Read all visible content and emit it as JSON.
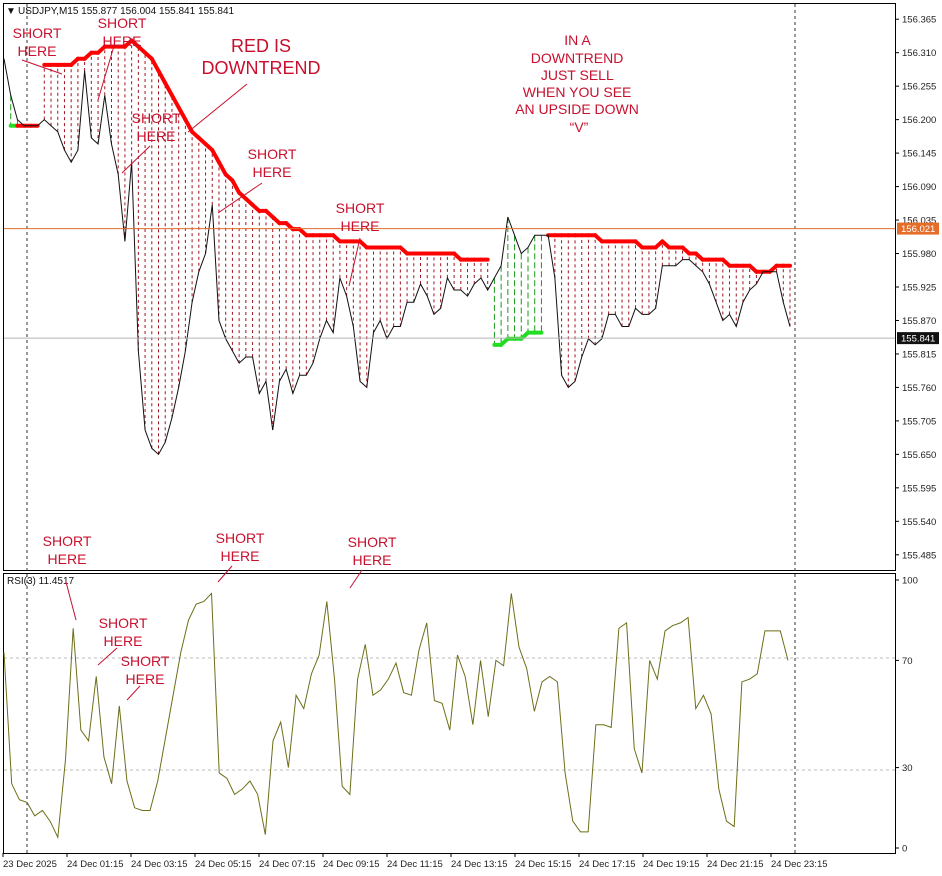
{
  "header": {
    "symbol_info": "USDJPY,M15  155.877 156.004 155.841 155.841",
    "menu_glyph": "▼"
  },
  "rsi_header": "RSI(3) 11.4517",
  "colors": {
    "price": "#111111",
    "down_ma": "#ff0000",
    "up_ma": "#22dd22",
    "fill_down": "#a0141e",
    "fill_up": "#1a9a1a",
    "bid_line": "#e46d2a",
    "ask_line": "#b0b0b0",
    "rsi": "#6e6e1a"
  },
  "price_tags": {
    "level_a": "156.021",
    "level_b": "155.841"
  },
  "annotations": {
    "big_title": [
      "RED  IS",
      "DOWNTREND"
    ],
    "rule_text": [
      "IN  A",
      "DOWNTREND",
      "JUST  SELL",
      "WHEN YOU SEE",
      "AN  UPSIDE DOWN",
      "“V”"
    ],
    "short_1": [
      "SHORT",
      "HERE"
    ],
    "short_2": [
      "SHORT",
      "HERE"
    ],
    "short_3": [
      "SHORT",
      "HERE"
    ],
    "short_4": [
      "SHORT",
      "HERE"
    ],
    "short_5": [
      "SHORT",
      "HERE"
    ],
    "rsi_short_1": [
      "SHORT",
      "HERE"
    ],
    "rsi_short_2": [
      "SHORT",
      "HERE"
    ],
    "rsi_short_3": [
      "SHORT",
      "HERE"
    ],
    "rsi_short_4": [
      "SHORT",
      "HERE"
    ],
    "rsi_short_5": [
      "SHORT",
      "HERE"
    ]
  },
  "chart_data": [
    {
      "type": "line",
      "title": "USDJPY,M15",
      "ylim": [
        155.46,
        156.39
      ],
      "y_ticks": [
        "156.365",
        "156.310",
        "156.255",
        "156.200",
        "156.145",
        "156.090",
        "156.035",
        "155.980",
        "155.925",
        "155.870",
        "155.815",
        "155.760",
        "155.705",
        "155.650",
        "155.595",
        "155.540",
        "155.485"
      ],
      "x_labels": [
        "23 Dec 2025",
        "24 Dec 01:15",
        "24 Dec 03:15",
        "24 Dec 05:15",
        "24 Dec 07:15",
        "24 Dec 09:15",
        "24 Dec 11:15",
        "24 Dec 13:15",
        "24 Dec 15:15",
        "24 Dec 17:15",
        "24 Dec 19:15",
        "24 Dec 21:15",
        "24 Dec 23:15"
      ],
      "reference_levels": [
        156.021,
        155.841
      ],
      "series": [
        {
          "values": [
            156.3,
            156.24,
            156.2,
            156.19,
            156.19,
            156.19,
            156.2,
            156.19,
            156.18,
            156.15,
            156.13,
            156.15,
            156.28,
            156.17,
            156.16,
            156.24,
            156.16,
            156.11,
            156.0,
            156.13,
            155.82,
            155.69,
            155.66,
            155.65,
            155.67,
            155.71,
            155.76,
            155.82,
            155.9,
            155.95,
            155.98,
            156.06,
            155.87,
            155.84,
            155.82,
            155.8,
            155.81,
            155.81,
            155.75,
            155.77,
            155.69,
            155.77,
            155.79,
            155.75,
            155.78,
            155.78,
            155.8,
            155.84,
            155.87,
            155.85,
            155.94,
            155.91,
            155.86,
            155.77,
            155.76,
            155.85,
            155.87,
            155.84,
            155.86,
            155.86,
            155.9,
            155.9,
            155.93,
            155.91,
            155.88,
            155.89,
            155.94,
            155.92,
            155.92,
            155.91,
            155.93,
            155.94,
            155.92,
            155.94,
            155.96,
            156.04,
            156.01,
            155.98,
            155.99,
            156.01,
            156.01,
            156.01,
            155.94,
            155.78,
            155.76,
            155.77,
            155.81,
            155.84,
            155.83,
            155.84,
            155.88,
            155.88,
            155.86,
            155.86,
            155.89,
            155.88,
            155.88,
            155.89,
            155.96,
            155.96,
            155.96,
            155.97,
            155.97,
            155.96,
            155.95,
            155.93,
            155.9,
            155.87,
            155.88,
            155.86,
            155.9,
            155.92,
            155.93,
            155.95,
            155.95,
            155.95,
            155.9,
            155.86
          ],
          "trend_ma": [
            null,
            156.19,
            156.19,
            156.19,
            156.19,
            156.19,
            156.29,
            156.29,
            156.29,
            156.29,
            156.29,
            156.3,
            156.3,
            156.31,
            156.31,
            156.32,
            156.32,
            156.32,
            156.32,
            156.33,
            156.32,
            156.31,
            156.3,
            156.28,
            156.26,
            156.24,
            156.22,
            156.2,
            156.18,
            156.17,
            156.16,
            156.15,
            156.13,
            156.11,
            156.1,
            156.08,
            156.07,
            156.06,
            156.05,
            156.05,
            156.04,
            156.03,
            156.03,
            156.02,
            156.02,
            156.01,
            156.01,
            156.01,
            156.01,
            156.01,
            156.0,
            156.0,
            156.0,
            156.0,
            155.99,
            155.99,
            155.99,
            155.99,
            155.99,
            155.99,
            155.98,
            155.98,
            155.98,
            155.98,
            155.98,
            155.98,
            155.98,
            155.98,
            155.97,
            155.97,
            155.97,
            155.97,
            155.97,
            155.83,
            155.83,
            155.84,
            155.84,
            155.84,
            155.85,
            155.85,
            155.85,
            156.01,
            156.01,
            156.01,
            156.01,
            156.01,
            156.01,
            156.01,
            156.01,
            156.0,
            156.0,
            156.0,
            156.0,
            156.0,
            156.0,
            155.99,
            155.99,
            155.99,
            156.0,
            155.99,
            155.99,
            155.99,
            155.98,
            155.98,
            155.97,
            155.97,
            155.97,
            155.97,
            155.96,
            155.96,
            155.96,
            155.96,
            155.95,
            155.95,
            155.95,
            155.96,
            155.96,
            155.96
          ]
        }
      ]
    },
    {
      "type": "line",
      "title": "RSI(3) 11.4517",
      "ylim": [
        0,
        100
      ],
      "y_ticks": [
        100,
        70,
        30,
        0
      ],
      "series": [
        {
          "name": "RSI(3)",
          "values": [
            73,
            24,
            18,
            17,
            12,
            14,
            10,
            4,
            33,
            82,
            44,
            40,
            64,
            34,
            24,
            53,
            25,
            15,
            14,
            14,
            25,
            41,
            57,
            73,
            85,
            91,
            92,
            95,
            28,
            26,
            20,
            22,
            25,
            20,
            5,
            40,
            47,
            30,
            57,
            52,
            65,
            72,
            92,
            63,
            23,
            20,
            63,
            76,
            57,
            59,
            63,
            69,
            58,
            57,
            74,
            84,
            55,
            54,
            44,
            72,
            64,
            46,
            70,
            49,
            70,
            68,
            95,
            75,
            67,
            51,
            62,
            64,
            62,
            28,
            10,
            6,
            6,
            46,
            46,
            45,
            82,
            84,
            37,
            28,
            70,
            63,
            81,
            83,
            84,
            86,
            52,
            57,
            50,
            22,
            10,
            8,
            62,
            63,
            65,
            81,
            81,
            81,
            70
          ]
        }
      ]
    }
  ]
}
